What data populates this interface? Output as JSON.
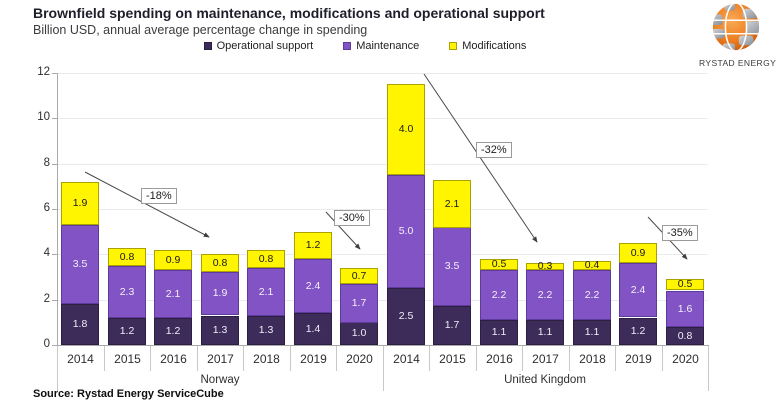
{
  "logo": {
    "brand": "RYSTAD ENERGY"
  },
  "source": "Source: Rystad Energy ServiceCube",
  "chart_data": {
    "type": "bar",
    "stacked": true,
    "title": "Brownfield spending on maintenance, modifications and operational support",
    "subtitle": "Billion USD, annual average percentage change in spending",
    "ylabel": "Billion USD",
    "ylim": [
      0,
      12
    ],
    "yticks": [
      0,
      2,
      4,
      6,
      8,
      10,
      12
    ],
    "grid": true,
    "legend_position": "top-center",
    "groups": [
      {
        "label": "Norway",
        "categories": [
          "2014",
          "2015",
          "2016",
          "2017",
          "2018",
          "2019",
          "2020"
        ]
      },
      {
        "label": "United Kingdom",
        "categories": [
          "2014",
          "2015",
          "2016",
          "2017",
          "2018",
          "2019",
          "2020"
        ]
      }
    ],
    "series": [
      {
        "name": "Operational support",
        "color": "#3d2b59",
        "border_color": "#2b1e42",
        "label_color": "#f1edf8",
        "values": {
          "Norway": [
            1.8,
            1.2,
            1.2,
            1.3,
            1.3,
            1.4,
            1.0
          ],
          "United Kingdom": [
            2.5,
            1.7,
            1.1,
            1.1,
            1.1,
            1.2,
            0.8
          ]
        }
      },
      {
        "name": "Maintenance",
        "color": "#8153c4",
        "border_color": "#5e3b9a",
        "label_color": "#f6f0fa",
        "values": {
          "Norway": [
            3.5,
            2.3,
            2.1,
            1.9,
            2.1,
            2.4,
            1.7
          ],
          "United Kingdom": [
            5.0,
            3.5,
            2.2,
            2.2,
            2.2,
            2.4,
            1.6
          ]
        }
      },
      {
        "name": "Modifications",
        "color": "#fff500",
        "border_color": "#aba100",
        "label_color": "#1a1a1a",
        "values": {
          "Norway": [
            1.9,
            0.8,
            0.9,
            0.8,
            0.8,
            1.2,
            0.7
          ],
          "United Kingdom": [
            4.0,
            2.1,
            0.5,
            0.3,
            0.4,
            0.9,
            0.5
          ]
        }
      }
    ],
    "annotations": [
      {
        "text": "-18%",
        "group": "Norway",
        "from": "2014",
        "to": "2017"
      },
      {
        "text": "-30%",
        "group": "Norway",
        "from": "2019",
        "to": "2020"
      },
      {
        "text": "-32%",
        "group": "United Kingdom",
        "from": "2014",
        "to": "2017"
      },
      {
        "text": "-35%",
        "group": "United Kingdom",
        "from": "2019",
        "to": "2020"
      }
    ]
  }
}
